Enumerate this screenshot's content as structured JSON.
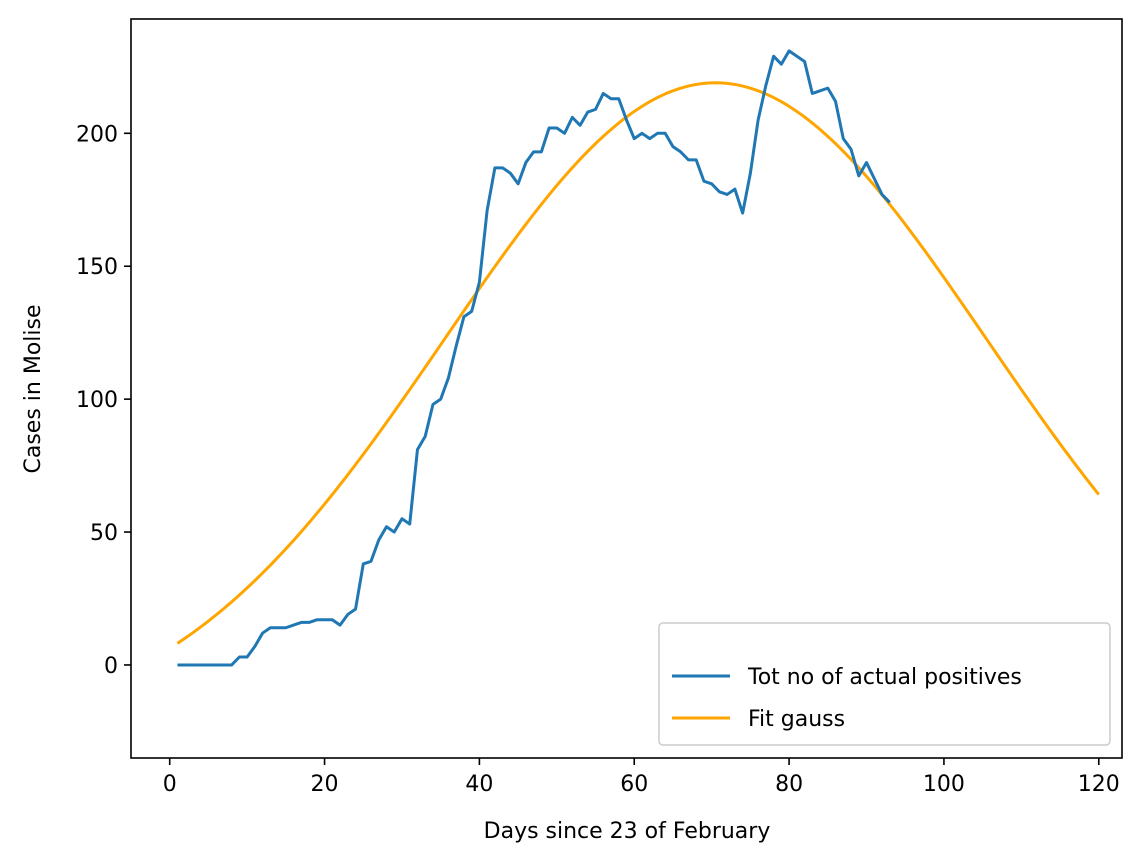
{
  "chart_data": {
    "type": "line",
    "title": "",
    "xlabel": "Days since 23 of February",
    "ylabel": "Cases in Molise",
    "xlim": [
      -5,
      123
    ],
    "ylim": [
      -35,
      243
    ],
    "xticks": [
      0,
      20,
      40,
      60,
      80,
      100,
      120
    ],
    "yticks": [
      0,
      50,
      100,
      150,
      200
    ],
    "grid": false,
    "legend_position": "lower right",
    "series": [
      {
        "name": "Tot no of actual positives",
        "color": "#1f77b4",
        "x": [
          1,
          2,
          3,
          4,
          5,
          6,
          7,
          8,
          9,
          10,
          11,
          12,
          13,
          14,
          15,
          16,
          17,
          18,
          19,
          20,
          21,
          22,
          23,
          24,
          25,
          26,
          27,
          28,
          29,
          30,
          31,
          32,
          33,
          34,
          35,
          36,
          37,
          38,
          39,
          40,
          41,
          42,
          43,
          44,
          45,
          46,
          47,
          48,
          49,
          50,
          51,
          52,
          53,
          54,
          55,
          56,
          57,
          58,
          59,
          60,
          61,
          62,
          63,
          64,
          65,
          66,
          67,
          68,
          69,
          70,
          71,
          72,
          73,
          74,
          75,
          76,
          77,
          78,
          79,
          80,
          81,
          82,
          83,
          84,
          85,
          86,
          87,
          88,
          89,
          90,
          91,
          92,
          93
        ],
        "y": [
          0,
          0,
          0,
          0,
          0,
          0,
          0,
          0,
          3,
          3,
          7,
          12,
          14,
          14,
          14,
          15,
          16,
          16,
          17,
          17,
          17,
          15,
          19,
          21,
          38,
          39,
          47,
          52,
          50,
          55,
          53,
          81,
          86,
          98,
          100,
          108,
          120,
          131,
          133,
          144,
          171,
          187,
          187,
          185,
          181,
          189,
          193,
          193,
          202,
          202,
          200,
          206,
          203,
          208,
          209,
          215,
          213,
          213,
          205,
          198,
          200,
          198,
          200,
          200,
          195,
          193,
          190,
          190,
          182,
          181,
          178,
          177,
          179,
          170,
          185,
          205,
          218,
          229,
          226,
          231,
          229,
          227,
          215,
          216,
          217,
          212,
          198,
          194,
          184,
          189,
          183,
          177,
          174
        ]
      },
      {
        "name": "Fit gauss",
        "color": "#ffa500",
        "function": "gaussian",
        "amplitude": 245,
        "mean": 70.5,
        "sigma": 35,
        "offset": -26,
        "x_range": [
          1,
          120
        ]
      }
    ]
  }
}
